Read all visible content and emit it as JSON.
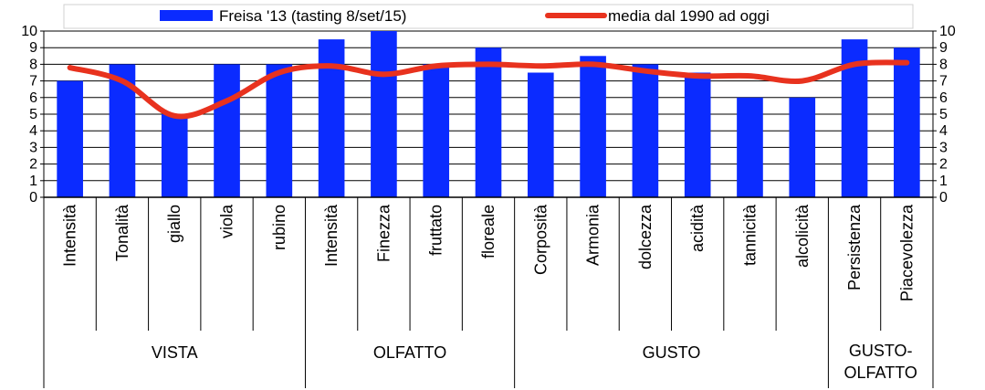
{
  "chart_data": {
    "type": "bar",
    "categories": [
      "Intensità",
      "Tonalità",
      "giallo",
      "viola",
      "rubino",
      "Intensità",
      "Finezza",
      "fruttato",
      "floreale",
      "Corposità",
      "Armonia",
      "dolcezza",
      "acidità",
      "tannicità",
      "alcolicità",
      "Persistenza",
      "Piacevolezza"
    ],
    "groups": [
      {
        "label": "VISTA",
        "count": 5
      },
      {
        "label": "OLFATTO",
        "count": 4
      },
      {
        "label": "GUSTO",
        "count": 6
      },
      {
        "label": "GUSTO-\nOLFATTO",
        "count": 2
      }
    ],
    "series": [
      {
        "name": "Freisa '13 (tasting 8/set/15)",
        "type": "bar",
        "color": "#0b2bff",
        "values": [
          7,
          8,
          5,
          8,
          8,
          9.5,
          10,
          8,
          9,
          7.5,
          8.5,
          8,
          7.5,
          6,
          6,
          9.5,
          9
        ]
      },
      {
        "name": "media dal 1990 ad oggi",
        "type": "line",
        "color": "#e8321e",
        "values": [
          7.8,
          7,
          4.9,
          5.8,
          7.5,
          7.9,
          7.4,
          7.9,
          8,
          7.9,
          8,
          7.6,
          7.3,
          7.3,
          7,
          8,
          8.1
        ]
      }
    ],
    "y_ticks": [
      "0",
      "1",
      "2",
      "3",
      "4",
      "5",
      "6",
      "7",
      "8",
      "9",
      "10"
    ],
    "ylim": [
      0,
      10
    ],
    "grid": true,
    "legend": "top"
  }
}
